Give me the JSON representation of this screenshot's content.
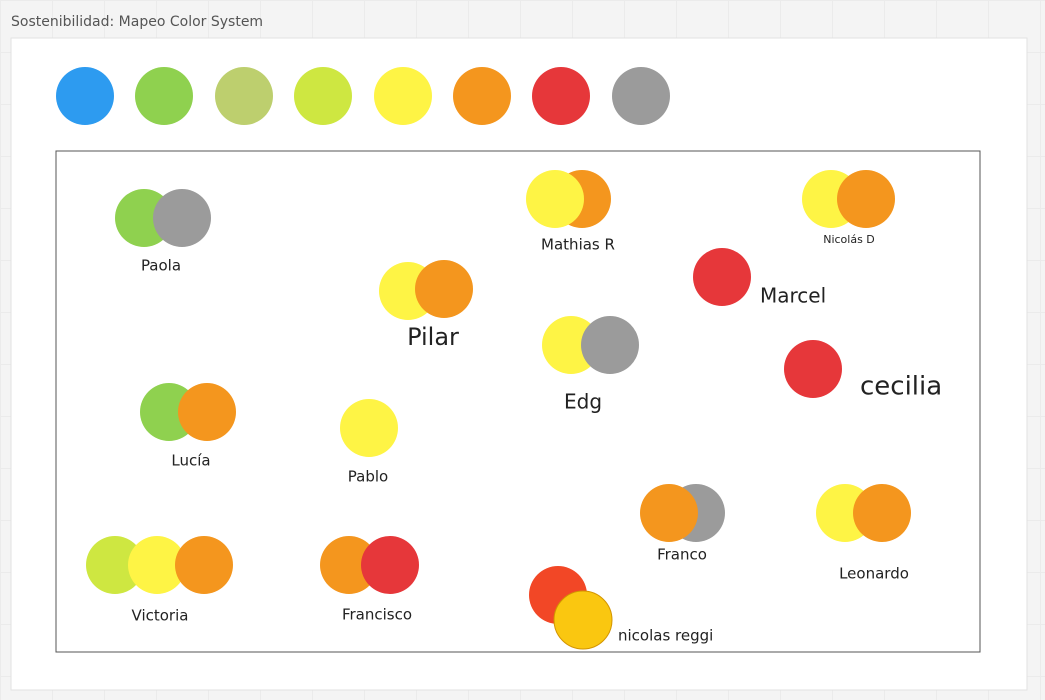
{
  "header": {
    "title": "Sostenibilidad: Mapeo Color System"
  },
  "palette": [
    "#2d9bf0",
    "#8fd14f",
    "#bdcf6e",
    "#cee741",
    "#fef445",
    "#f4961e",
    "#e6373a",
    "#9b9b9b"
  ],
  "people": [
    {
      "label": "Paola",
      "circles": [
        "#8fd14f",
        "#9b9b9b"
      ]
    },
    {
      "label": "Mathias R",
      "circles": [
        "#f4961e",
        "#fef445"
      ]
    },
    {
      "label": "Nicolás D",
      "circles": [
        "#fef445",
        "#f4961e"
      ]
    },
    {
      "label": "Pilar",
      "circles": [
        "#fef445",
        "#f4961e"
      ]
    },
    {
      "label": "Marcel",
      "circles": [
        "#e6373a"
      ]
    },
    {
      "label": "Edg",
      "circles": [
        "#fef445",
        "#9b9b9b"
      ]
    },
    {
      "label": "cecilia",
      "circles": [
        "#e6373a"
      ]
    },
    {
      "label": "Lucía",
      "circles": [
        "#8fd14f",
        "#f4961e"
      ]
    },
    {
      "label": "Pablo",
      "circles": [
        "#fef445"
      ]
    },
    {
      "label": "Franco",
      "circles": [
        "#9b9b9b",
        "#f4961e"
      ]
    },
    {
      "label": "Leonardo",
      "circles": [
        "#fef445",
        "#f4961e"
      ]
    },
    {
      "label": "Victoria",
      "circles": [
        "#cee741",
        "#fef445",
        "#f4961e"
      ]
    },
    {
      "label": "Francisco",
      "circles": [
        "#f4961e",
        "#e6373a"
      ]
    },
    {
      "label": "nicolas reggi",
      "circles": [
        "#f24726",
        "#fac710"
      ]
    }
  ]
}
